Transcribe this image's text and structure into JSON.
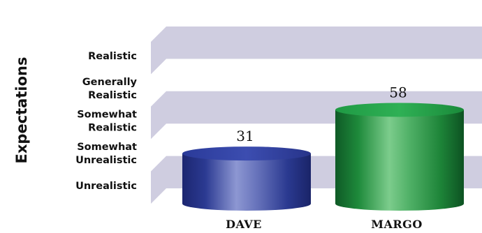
{
  "chart_data": {
    "type": "bar",
    "title": "",
    "ylabel": "Expectations",
    "xlabel": "",
    "categories": [
      "DAVE",
      "MARGO"
    ],
    "values": [
      31,
      58
    ],
    "ylim": [
      0,
      100
    ],
    "y_tick_labels": [
      [
        "Unrealistic"
      ],
      [
        "Somewhat",
        "Unrealistic"
      ],
      [
        "Somewhat",
        "Realistic"
      ],
      [
        "Generally",
        "Realistic"
      ],
      [
        "Realistic"
      ]
    ],
    "bar_colors": [
      "#2f3f9a",
      "#1f8a3c"
    ],
    "grid_band_color": "#cfcde0",
    "data_labels": true,
    "legend": "none",
    "style": "3d-cylinder"
  }
}
